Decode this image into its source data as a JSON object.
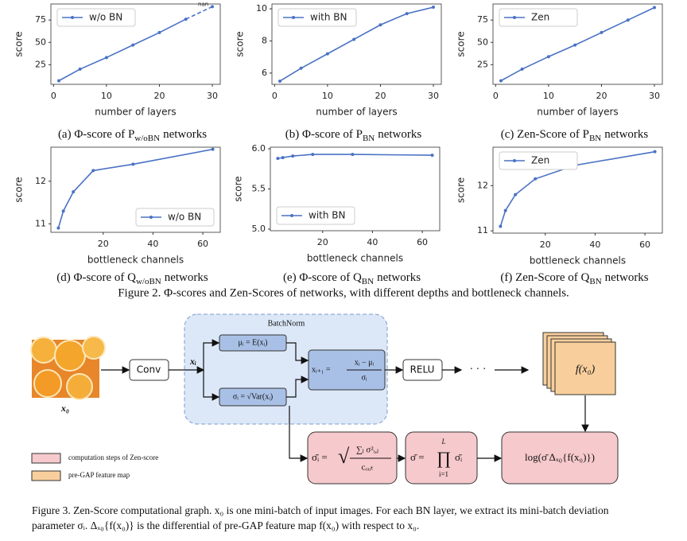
{
  "chart_data": [
    {
      "type": "line",
      "xlabel": "number of layers",
      "ylabel": "score",
      "x": [
        1,
        5,
        10,
        15,
        20,
        25,
        30
      ],
      "series": [
        {
          "name": "w/o BN",
          "color": "#4a72c4",
          "values": [
            7,
            20,
            33,
            47,
            61,
            76,
            90
          ]
        }
      ],
      "xlim": [
        -0.5,
        31.5
      ],
      "ylim": [
        3,
        93
      ],
      "xticks": [
        0,
        10,
        20,
        30
      ],
      "yticks": [
        25,
        50,
        75
      ],
      "legend": "upper left",
      "last_segment_style": "dashed",
      "annotation": "nan",
      "caption": [
        "(a) Φ-score of P",
        "w/oBN",
        "networks"
      ]
    },
    {
      "type": "line",
      "xlabel": "number of layers",
      "ylabel": "score",
      "x": [
        1,
        5,
        10,
        15,
        20,
        25,
        30
      ],
      "series": [
        {
          "name": "with BN",
          "color": "#4a72c4",
          "values": [
            5.5,
            6.3,
            7.2,
            8.1,
            9.0,
            9.7,
            10.1
          ]
        }
      ],
      "xlim": [
        -0.5,
        31.5
      ],
      "ylim": [
        5.3,
        10.3
      ],
      "xticks": [
        0,
        10,
        20,
        30
      ],
      "yticks": [
        6,
        8,
        10
      ],
      "legend": "upper left",
      "caption": [
        "(b) Φ-score of P",
        "BN",
        "networks"
      ]
    },
    {
      "type": "line",
      "xlabel": "number of layers",
      "ylabel": "score",
      "x": [
        1,
        5,
        10,
        15,
        20,
        25,
        30
      ],
      "series": [
        {
          "name": "Zen",
          "color": "#4a72c4",
          "values": [
            7,
            20,
            34,
            47,
            61,
            75,
            89
          ]
        }
      ],
      "xlim": [
        -0.5,
        31.5
      ],
      "ylim": [
        3,
        93
      ],
      "xticks": [
        0,
        10,
        20,
        30
      ],
      "yticks": [
        25,
        50,
        75
      ],
      "legend": "upper left",
      "caption": [
        "(c) Zen-Score of P",
        "BN",
        "networks"
      ]
    },
    {
      "type": "line",
      "xlabel": "bottleneck channels",
      "ylabel": "score",
      "x": [
        2,
        4,
        8,
        16,
        32,
        64
      ],
      "series": [
        {
          "name": "w/o BN",
          "color": "#4a72c4",
          "values": [
            10.9,
            11.3,
            11.75,
            12.25,
            12.4,
            12.75
          ]
        }
      ],
      "xlim": [
        -1,
        67
      ],
      "ylim": [
        10.8,
        12.8
      ],
      "xticks": [
        20,
        40,
        60
      ],
      "yticks": [
        11,
        12
      ],
      "legend": "lower right",
      "caption": [
        "(d) Φ-score of Q",
        "w/oBN",
        "networks"
      ]
    },
    {
      "type": "line",
      "xlabel": "bottleneck channels",
      "ylabel": "score",
      "x": [
        2,
        4,
        8,
        16,
        32,
        64
      ],
      "series": [
        {
          "name": "with BN",
          "color": "#4a72c4",
          "values": [
            5.88,
            5.89,
            5.91,
            5.93,
            5.93,
            5.92
          ]
        }
      ],
      "xlim": [
        -1,
        67
      ],
      "ylim": [
        4.98,
        6.02
      ],
      "xticks": [
        20,
        40,
        60
      ],
      "yticks": [
        {
          "value": 5,
          "label": "5.0"
        },
        {
          "value": 5.5,
          "label": "5.5"
        },
        {
          "value": 6,
          "label": "6.0"
        }
      ],
      "legend": "lower left",
      "caption": [
        "(e) Φ-score of Q",
        "BN",
        "networks"
      ]
    },
    {
      "type": "line",
      "xlabel": "bottleneck channels",
      "ylabel": "score",
      "x": [
        2,
        4,
        8,
        16,
        32,
        64
      ],
      "series": [
        {
          "name": "Zen",
          "color": "#4a72c4",
          "values": [
            11.1,
            11.45,
            11.8,
            12.15,
            12.45,
            12.75
          ]
        }
      ],
      "xlim": [
        -1,
        67
      ],
      "ylim": [
        10.95,
        12.85
      ],
      "xticks": [
        20,
        40,
        60
      ],
      "yticks": [
        11,
        12
      ],
      "legend": "upper left",
      "caption": [
        "(f) Zen-Score of Q",
        "BN",
        "networks"
      ]
    }
  ],
  "figure2_caption": "Figure 2. Φ-scores and Zen-Scores of networks, with different depths and bottleneck channels.",
  "diagram": {
    "batchnorm": "BatchNorm",
    "input": "x₀",
    "conv": "Conv",
    "xi": "xᵢ",
    "mu": "μᵢ = E(xᵢ)",
    "sigma": "σᵢ = √Var(xᵢ)",
    "norm_left": "xᵢ₊₁ =",
    "norm_num": "xᵢ − μᵢ",
    "norm_den": "σᵢ",
    "relu": "RELU",
    "dots": "· · ·",
    "feature": "f(x₀)",
    "sbar_left": "σ̄ᵢ =",
    "sbar_num": "∑ⱼ σ²ᵢ,ⱼ",
    "sbar_den": "cₒᵤₜ",
    "prod_left": "σ̄ =",
    "prod_sym": "∏",
    "prod_top": "L",
    "prod_bottom": "i=1",
    "prod_right": "σ̄ᵢ",
    "log": "log(σ̄ Δₓ₀{f(x₀)})",
    "legend_pink": "computation steps of Zen-score",
    "legend_orange": "pre-GAP feature map"
  },
  "figure3_caption": [
    "Figure 3. Zen-Score computational graph. x₀ is one mini-batch of input images. For each BN layer, we extract its mini-batch deviation",
    "parameter σᵢ. Δₓ₀{f(x₀)} is the differential of pre-GAP feature map f(x₀) with respect to x₀."
  ]
}
